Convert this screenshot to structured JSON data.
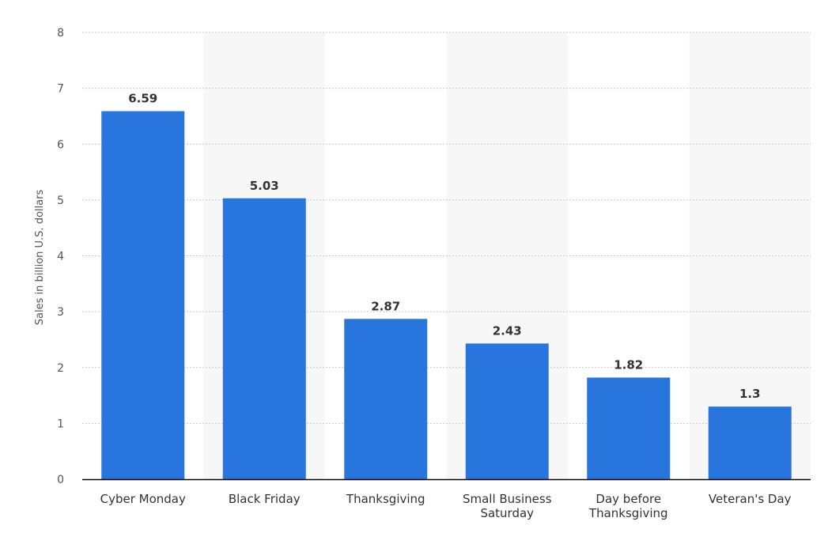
{
  "chart_data": {
    "type": "bar",
    "title": "",
    "xlabel": "",
    "ylabel": "Sales in billion U.S. dollars",
    "categories": [
      [
        "Cyber Monday"
      ],
      [
        "Black Friday"
      ],
      [
        "Thanksgiving"
      ],
      [
        "Small Business",
        "Saturday"
      ],
      [
        "Day before",
        "Thanksgiving"
      ],
      [
        "Veteran's Day"
      ]
    ],
    "values": [
      6.59,
      5.03,
      2.87,
      2.43,
      1.82,
      1.3
    ],
    "data_labels": [
      "6.59",
      "5.03",
      "2.87",
      "2.43",
      "1.82",
      "1.3"
    ],
    "ylim": [
      0,
      8
    ],
    "yticks": [
      0,
      1,
      2,
      3,
      4,
      5,
      6,
      7,
      8
    ],
    "grid": true,
    "grid_style": "dotted",
    "alternating_bands": true,
    "legend": "none",
    "colors": {
      "bar": "#2876dd",
      "band": "#f7f7f7",
      "grid": "#c8c8c8",
      "axis": "#000000"
    }
  }
}
